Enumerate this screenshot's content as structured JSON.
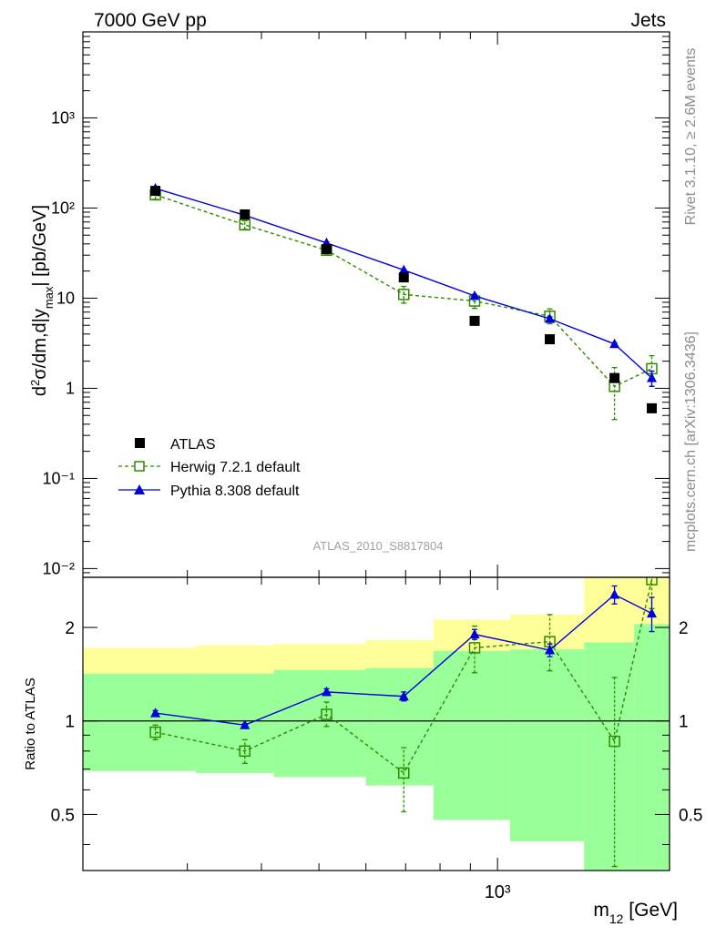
{
  "header": {
    "left": "7000 GeV pp",
    "right": "Jets"
  },
  "side_labels": {
    "rivet": "Rivet 3.1.10, ≥ 2.6M events",
    "mcplots": "mcplots.cern.ch [arXiv:1306.3436]"
  },
  "analysis_label": "ATLAS_2010_S8817804",
  "colors": {
    "data": "#000000",
    "herwig": "#2e8b00",
    "pythia": "#0000dd",
    "band_outer": "#ffff99",
    "band_inner": "#99ff99"
  },
  "legend": {
    "placement": "lower-left",
    "entries": [
      {
        "key": "atlas",
        "label": "ATLAS"
      },
      {
        "key": "herwig",
        "label": "Herwig 7.2.1 default"
      },
      {
        "key": "pythia",
        "label": "Pythia 8.308 default"
      }
    ]
  },
  "chart_data": [
    {
      "type": "scatter",
      "panel": "main",
      "ylabel": "d²σ/dm,d|y_max| [pb/GeV]",
      "xscale": "log",
      "yscale": "log",
      "xlim": [
        200,
        1950
      ],
      "ylim": [
        0.008,
        9000
      ],
      "yticks": [
        {
          "value": 0.01,
          "label": "10⁻²"
        },
        {
          "value": 0.1,
          "label": "10⁻¹"
        },
        {
          "value": 1,
          "label": "1"
        },
        {
          "value": 10,
          "label": "10"
        },
        {
          "value": 100,
          "label": "10²"
        },
        {
          "value": 1000,
          "label": "10³"
        }
      ],
      "x": [
        265,
        375,
        515,
        695,
        915,
        1225,
        1575,
        1820
      ],
      "series": [
        {
          "name": "ATLAS",
          "key": "atlas",
          "values": [
            155,
            85,
            35,
            17,
            5.6,
            3.5,
            1.3,
            0.6
          ]
        },
        {
          "name": "Herwig 7.2.1 default",
          "key": "herwig",
          "values": [
            140,
            65,
            34,
            11,
            9.3,
            6.3,
            1.05,
            1.65
          ],
          "err_low": [
            125,
            58,
            31,
            8.8,
            7.7,
            5.2,
            0.45,
            1.05
          ],
          "err_high": [
            155,
            72,
            37,
            13.5,
            11,
            7.6,
            1.7,
            2.3
          ]
        },
        {
          "name": "Pythia 8.308 default",
          "key": "pythia",
          "values": [
            165,
            83,
            41,
            20.5,
            10.6,
            5.9,
            3.1,
            1.3
          ],
          "err_low": [
            160,
            81,
            40,
            20,
            10.3,
            5.6,
            3.0,
            1.05
          ],
          "err_high": [
            170,
            85,
            42,
            21,
            10.9,
            6.2,
            3.2,
            1.55
          ]
        }
      ]
    },
    {
      "type": "scatter",
      "panel": "ratio",
      "xlabel": "m₁₂ [GeV]",
      "ylabel": "Ratio to ATLAS",
      "xscale": "log",
      "yscale": "log",
      "xlim": [
        200,
        1950
      ],
      "ylim": [
        0.33,
        2.9
      ],
      "xticks": [
        {
          "value": 1000,
          "label": "10³"
        }
      ],
      "yticks": [
        {
          "value": 0.5,
          "label": "0.5"
        },
        {
          "value": 1,
          "label": "1"
        },
        {
          "value": 2,
          "label": "2"
        }
      ],
      "reference_line": 1,
      "bins": [
        {
          "xlo": 200,
          "xhi": 310,
          "outer": [
            0.69,
            1.72
          ],
          "inner": [
            0.69,
            1.42
          ]
        },
        {
          "xlo": 310,
          "xhi": 420,
          "outer": [
            0.68,
            1.75
          ],
          "inner": [
            0.68,
            1.42
          ]
        },
        {
          "xlo": 420,
          "xhi": 600,
          "outer": [
            0.66,
            1.77
          ],
          "inner": [
            0.66,
            1.46
          ]
        },
        {
          "xlo": 600,
          "xhi": 780,
          "outer": [
            0.62,
            1.82
          ],
          "inner": [
            0.62,
            1.48
          ]
        },
        {
          "xlo": 780,
          "xhi": 1050,
          "outer": [
            0.48,
            2.12
          ],
          "inner": [
            0.48,
            1.68
          ]
        },
        {
          "xlo": 1050,
          "xhi": 1400,
          "outer": [
            0.41,
            2.2
          ],
          "inner": [
            0.41,
            1.7
          ]
        },
        {
          "xlo": 1400,
          "xhi": 1700,
          "outer": [
            0.33,
            2.9
          ],
          "inner": [
            0.33,
            1.79
          ]
        },
        {
          "xlo": 1700,
          "xhi": 1950,
          "outer": [
            0.33,
            2.9
          ],
          "inner": [
            0.33,
            2.05
          ]
        }
      ],
      "x": [
        265,
        375,
        515,
        695,
        915,
        1225,
        1575,
        1820
      ],
      "series": [
        {
          "name": "Herwig 7.2.1 default",
          "key": "herwig",
          "values": [
            0.92,
            0.8,
            1.05,
            0.68,
            1.72,
            1.8,
            0.86,
            2.85
          ],
          "err_low": [
            0.87,
            0.73,
            0.96,
            0.51,
            1.43,
            1.45,
            0.34,
            2.3
          ],
          "err_high": [
            0.97,
            0.87,
            1.15,
            0.82,
            2.02,
            2.2,
            1.38,
            3.3
          ]
        },
        {
          "name": "Pythia 8.308 default",
          "key": "pythia",
          "values": [
            1.06,
            0.97,
            1.24,
            1.2,
            1.9,
            1.69,
            2.55,
            2.22
          ],
          "err_low": [
            1.04,
            0.96,
            1.21,
            1.16,
            1.83,
            1.61,
            2.38,
            1.94
          ],
          "err_high": [
            1.08,
            0.98,
            1.27,
            1.24,
            1.97,
            1.77,
            2.72,
            2.5
          ]
        }
      ]
    }
  ]
}
